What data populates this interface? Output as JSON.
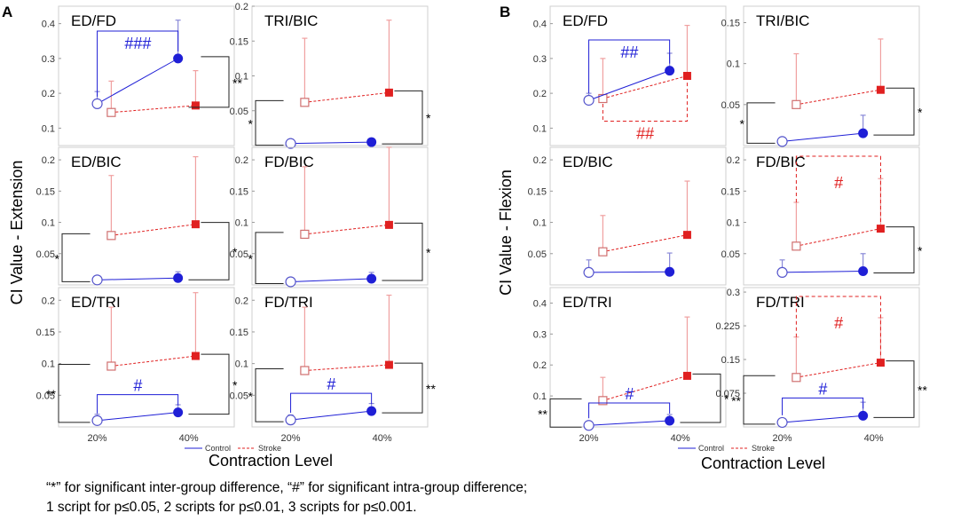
{
  "colors": {
    "control": "#1f1fd6",
    "stroke": "#e02020",
    "stroke_light": "#f0a0a0",
    "axis": "#cfcfcf",
    "bracket": "#222222"
  },
  "figure_labels": {
    "panel_a": "A",
    "panel_b": "B",
    "ylabel_a": "CI Value - Extension",
    "ylabel_b": "CI Value - Flexion",
    "xlabel": "Contraction Level",
    "legend_control": "Control",
    "legend_stroke": "Stroke"
  },
  "caption": {
    "line1": "“*” for significant inter-group difference, “#” for significant intra-group  difference;",
    "line2": "1 script for p≤0.05, 2 scripts for p≤0.01, 3 scripts for p≤0.001."
  },
  "chart_data": [
    {
      "id": "A-ED-FD",
      "type": "line",
      "title": "ED/FD",
      "categories": [
        "20%",
        "40%"
      ],
      "ylim": [
        0.05,
        0.45
      ],
      "yticks": [
        "0.1",
        "0.2",
        "0.3",
        "0.4"
      ],
      "show_xticks": false,
      "series": [
        {
          "name": "Control",
          "values": [
            0.17,
            0.3
          ],
          "err": [
            0.035,
            0.11
          ]
        },
        {
          "name": "Stroke",
          "values": [
            0.145,
            0.165
          ],
          "err": [
            0.09,
            0.1
          ]
        }
      ],
      "annotations": [
        {
          "kind": "intra",
          "group": "Control",
          "label": "###"
        },
        {
          "kind": "inter",
          "at": "40%",
          "label": "**"
        }
      ]
    },
    {
      "id": "A-TRI-BIC",
      "type": "line",
      "title": "TRI/BIC",
      "categories": [
        "20%",
        "40%"
      ],
      "ylim": [
        0,
        0.2
      ],
      "yticks": [
        "0.05",
        "0.1",
        "0.15",
        "0.2"
      ],
      "show_xticks": false,
      "series": [
        {
          "name": "Control",
          "values": [
            0.003,
            0.005
          ],
          "err": [
            0.004,
            0.004
          ]
        },
        {
          "name": "Stroke",
          "values": [
            0.062,
            0.076
          ],
          "err": [
            0.092,
            0.104
          ]
        }
      ],
      "annotations": [
        {
          "kind": "inter",
          "at": "20%",
          "label": "*"
        },
        {
          "kind": "inter",
          "at": "40%",
          "label": "*"
        }
      ]
    },
    {
      "id": "A-ED-BIC",
      "type": "line",
      "title": "ED/BIC",
      "categories": [
        "20%",
        "40%"
      ],
      "ylim": [
        0,
        0.22
      ],
      "yticks": [
        "0.05",
        "0.1",
        "0.15",
        "0.2"
      ],
      "show_xticks": false,
      "series": [
        {
          "name": "Control",
          "values": [
            0.008,
            0.011
          ],
          "err": [
            0.006,
            0.01
          ]
        },
        {
          "name": "Stroke",
          "values": [
            0.079,
            0.097
          ],
          "err": [
            0.096,
            0.108
          ]
        }
      ],
      "annotations": [
        {
          "kind": "inter",
          "at": "20%",
          "label": "*"
        },
        {
          "kind": "inter",
          "at": "40%",
          "label": "*"
        }
      ]
    },
    {
      "id": "A-FD-BIC",
      "type": "line",
      "title": "FD/BIC",
      "categories": [
        "20%",
        "40%"
      ],
      "ylim": [
        0,
        0.22
      ],
      "yticks": [
        "0.05",
        "0.1",
        "0.15",
        "0.2"
      ],
      "show_xticks": false,
      "series": [
        {
          "name": "Control",
          "values": [
            0.005,
            0.01
          ],
          "err": [
            0.006,
            0.01
          ]
        },
        {
          "name": "Stroke",
          "values": [
            0.081,
            0.096
          ],
          "err": [
            0.108,
            0.124
          ]
        }
      ],
      "annotations": [
        {
          "kind": "inter",
          "at": "20%",
          "label": "*"
        },
        {
          "kind": "inter",
          "at": "40%",
          "label": "*"
        }
      ]
    },
    {
      "id": "A-ED-TRI",
      "type": "line",
      "title": "ED/TRI",
      "categories": [
        "20%",
        "40%"
      ],
      "ylim": [
        0,
        0.22
      ],
      "yticks": [
        "0.05",
        "0.1",
        "0.15",
        "0.2"
      ],
      "show_xticks": true,
      "series": [
        {
          "name": "Control",
          "values": [
            0.01,
            0.023
          ],
          "err": [
            0.01,
            0.012
          ]
        },
        {
          "name": "Stroke",
          "values": [
            0.096,
            0.112
          ],
          "err": [
            0.093,
            0.1
          ]
        }
      ],
      "annotations": [
        {
          "kind": "inter",
          "at": "20%",
          "label": "**"
        },
        {
          "kind": "inter",
          "at": "40%",
          "label": "*"
        },
        {
          "kind": "intra",
          "group": "Control",
          "label": "#"
        }
      ]
    },
    {
      "id": "A-FD-TRI",
      "type": "line",
      "title": "FD/TRI",
      "categories": [
        "20%",
        "40%"
      ],
      "ylim": [
        0,
        0.22
      ],
      "yticks": [
        "0.05",
        "0.1",
        "0.15",
        "0.2"
      ],
      "show_xticks": true,
      "series": [
        {
          "name": "Control",
          "values": [
            0.011,
            0.025
          ],
          "err": [
            0.008,
            0.012
          ]
        },
        {
          "name": "Stroke",
          "values": [
            0.089,
            0.098
          ],
          "err": [
            0.1,
            0.11
          ]
        }
      ],
      "annotations": [
        {
          "kind": "inter",
          "at": "20%",
          "label": "*"
        },
        {
          "kind": "inter",
          "at": "40%",
          "label": "**"
        },
        {
          "kind": "intra",
          "group": "Control",
          "label": "#"
        }
      ]
    },
    {
      "id": "B-ED-FD",
      "type": "line",
      "title": "ED/FD",
      "categories": [
        "20%",
        "40%"
      ],
      "ylim": [
        0.05,
        0.45
      ],
      "yticks": [
        "0.1",
        "0.2",
        "0.3",
        "0.4"
      ],
      "show_xticks": false,
      "series": [
        {
          "name": "Control",
          "values": [
            0.18,
            0.265
          ],
          "err": [
            0.02,
            0.05
          ]
        },
        {
          "name": "Stroke",
          "values": [
            0.185,
            0.25
          ],
          "err": [
            0.115,
            0.145
          ]
        }
      ],
      "annotations": [
        {
          "kind": "intra",
          "group": "Control",
          "label": "##"
        },
        {
          "kind": "intra",
          "group": "Stroke",
          "label": "##"
        }
      ]
    },
    {
      "id": "B-TRI-BIC",
      "type": "line",
      "title": "TRI/BIC",
      "categories": [
        "20%",
        "40%"
      ],
      "ylim": [
        0,
        0.17
      ],
      "yticks": [
        "0.05",
        "0.1",
        "0.15"
      ],
      "show_xticks": false,
      "series": [
        {
          "name": "Control",
          "values": [
            0.005,
            0.015
          ],
          "err": [
            0.004,
            0.022
          ]
        },
        {
          "name": "Stroke",
          "values": [
            0.05,
            0.068
          ],
          "err": [
            0.062,
            0.062
          ]
        }
      ],
      "annotations": [
        {
          "kind": "inter",
          "at": "20%",
          "label": "*"
        },
        {
          "kind": "inter",
          "at": "40%",
          "label": "*"
        }
      ]
    },
    {
      "id": "B-ED-BIC",
      "type": "line",
      "title": "ED/BIC",
      "categories": [
        "20%",
        "40%"
      ],
      "ylim": [
        0,
        0.22
      ],
      "yticks": [
        "0.05",
        "0.1",
        "0.15",
        "0.2"
      ],
      "show_xticks": false,
      "series": [
        {
          "name": "Control",
          "values": [
            0.02,
            0.021
          ],
          "err": [
            0.02,
            0.03
          ]
        },
        {
          "name": "Stroke",
          "values": [
            0.053,
            0.08
          ],
          "err": [
            0.058,
            0.086
          ]
        }
      ],
      "annotations": []
    },
    {
      "id": "B-FD-BIC",
      "type": "line",
      "title": "FD/BIC",
      "categories": [
        "20%",
        "40%"
      ],
      "ylim": [
        0,
        0.22
      ],
      "yticks": [
        "0.05",
        "0.1",
        "0.15",
        "0.2"
      ],
      "show_xticks": false,
      "series": [
        {
          "name": "Control",
          "values": [
            0.02,
            0.022
          ],
          "err": [
            0.02,
            0.028
          ]
        },
        {
          "name": "Stroke",
          "values": [
            0.062,
            0.09
          ],
          "err": [
            0.07,
            0.08
          ]
        }
      ],
      "annotations": [
        {
          "kind": "intra",
          "group": "Stroke",
          "label": "#"
        },
        {
          "kind": "inter",
          "at": "40%",
          "label": "*"
        }
      ]
    },
    {
      "id": "B-ED-TRI",
      "type": "line",
      "title": "ED/TRI",
      "categories": [
        "20%",
        "40%"
      ],
      "ylim": [
        0,
        0.45
      ],
      "yticks": [
        "0.1",
        "0.2",
        "0.3",
        "0.4"
      ],
      "show_xticks": true,
      "series": [
        {
          "name": "Control",
          "values": [
            0.005,
            0.02
          ],
          "err": [
            0.005,
            0.02
          ]
        },
        {
          "name": "Stroke",
          "values": [
            0.085,
            0.165
          ],
          "err": [
            0.075,
            0.19
          ]
        }
      ],
      "annotations": [
        {
          "kind": "inter",
          "at": "20%",
          "label": "**"
        },
        {
          "kind": "inter",
          "at": "40%",
          "label": "*"
        },
        {
          "kind": "intra",
          "group": "Control",
          "label": "#"
        }
      ]
    },
    {
      "id": "B-FD-TRI",
      "type": "line",
      "title": "FD/TRI",
      "categories": [
        "20%",
        "40%"
      ],
      "ylim": [
        0,
        0.31
      ],
      "yticks": [
        "0.075",
        "0.15",
        "0.225",
        "0.3"
      ],
      "show_xticks": true,
      "series": [
        {
          "name": "Control",
          "values": [
            0.01,
            0.025
          ],
          "err": [
            0.008,
            0.03
          ]
        },
        {
          "name": "Stroke",
          "values": [
            0.11,
            0.143
          ],
          "err": [
            0.09,
            0.1
          ]
        }
      ],
      "annotations": [
        {
          "kind": "intra",
          "group": "Stroke",
          "label": "#"
        },
        {
          "kind": "inter",
          "at": "20%",
          "label": "**"
        },
        {
          "kind": "inter",
          "at": "40%",
          "label": "**"
        },
        {
          "kind": "intra",
          "group": "Control",
          "label": "#"
        }
      ]
    }
  ]
}
